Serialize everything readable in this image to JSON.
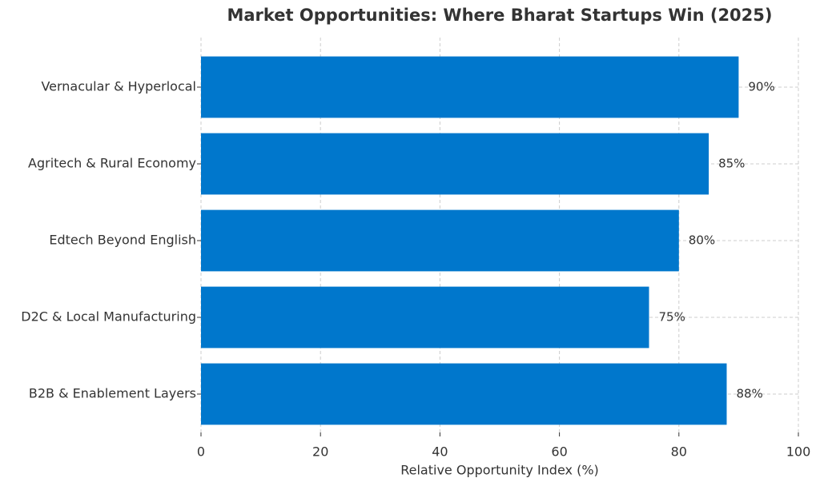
{
  "chart_data": {
    "type": "bar",
    "orientation": "horizontal",
    "title": "Market Opportunities: Where Bharat Startups Win (2025)",
    "categories": [
      "Vernacular & Hyperlocal",
      "Agritech & Rural Economy",
      "Edtech Beyond English",
      "D2C & Local Manufacturing",
      "B2B & Enablement Layers"
    ],
    "values": [
      90,
      85,
      80,
      75,
      88
    ],
    "value_labels": [
      "90%",
      "85%",
      "80%",
      "75%",
      "88%"
    ],
    "color": "#0077cc",
    "xlabel": "Relative Opportunity Index (%)",
    "xlim": [
      0,
      100
    ],
    "xticks": [
      0,
      20,
      40,
      60,
      80,
      100
    ],
    "grid": true
  }
}
